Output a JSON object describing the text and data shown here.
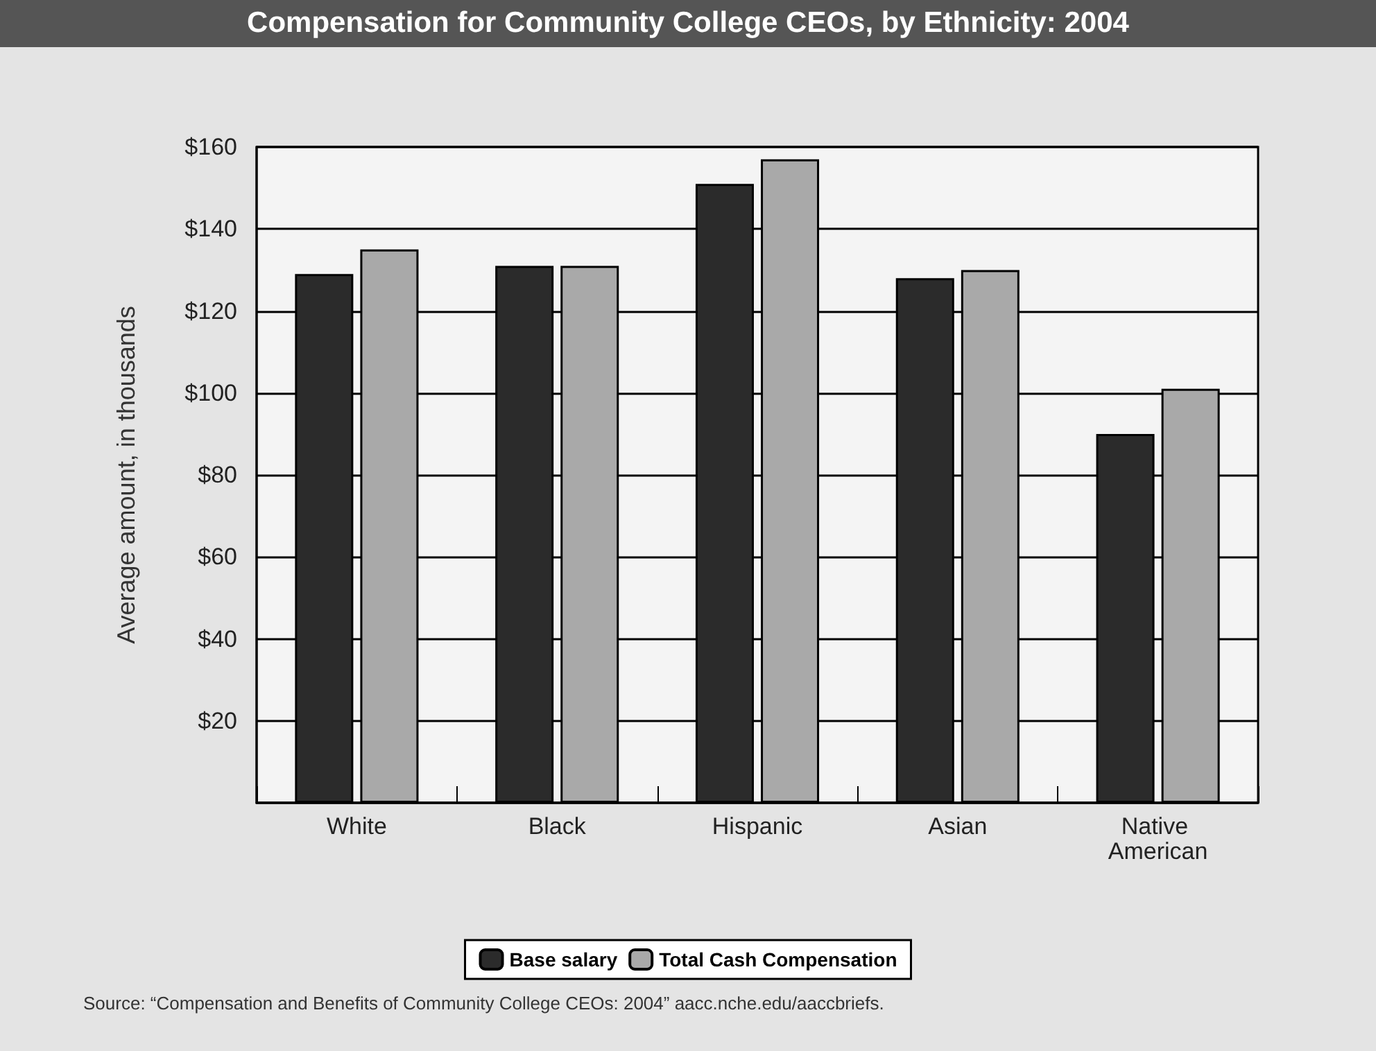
{
  "chart_data": {
    "type": "bar",
    "title": "Compensation for Community College CEOs, by Ethnicity: 2004",
    "ylabel": "Average amount, in thousands",
    "categories": [
      "White",
      "Black",
      "Hispanic",
      "Asian",
      "Native American"
    ],
    "series": [
      {
        "name": "Base salary",
        "color": "#2b2b2b",
        "values": [
          129,
          131,
          151,
          128,
          90
        ]
      },
      {
        "name": "Total Cash Compensation",
        "color": "#a9a9a9",
        "values": [
          135,
          131,
          157,
          130,
          101
        ]
      }
    ],
    "ylim": [
      0,
      160
    ],
    "yticks": [
      {
        "value": 0,
        "label": null
      },
      {
        "value": 20,
        "label": "$20"
      },
      {
        "value": 40,
        "label": "$40"
      },
      {
        "value": 60,
        "label": "$60"
      },
      {
        "value": 80,
        "label": "$80"
      },
      {
        "value": 100,
        "label": "$100"
      },
      {
        "value": 120,
        "label": "$120"
      },
      {
        "value": 140,
        "label": "$140"
      },
      {
        "value": 160,
        "label": "$160"
      }
    ],
    "grid": "y",
    "legend": "bottom",
    "annotations": [
      "Source: “Compensation and Benefits of Community College CEOs: 2004”     aacc.nche.edu/aaccbriefs."
    ]
  }
}
